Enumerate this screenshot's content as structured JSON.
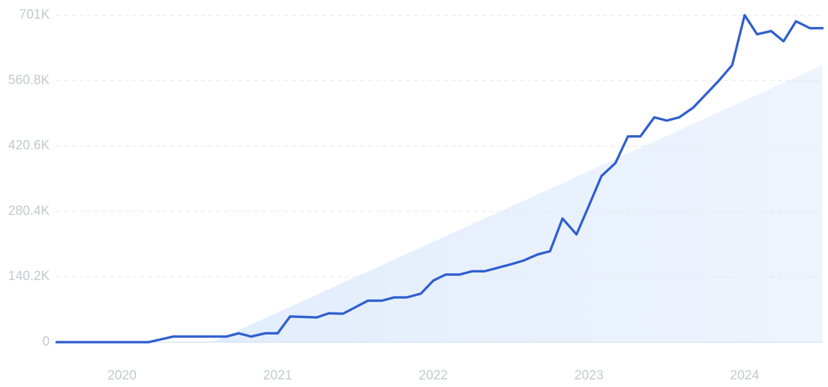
{
  "chart_data": {
    "type": "line",
    "x": [
      2019.58,
      2019.67,
      2019.75,
      2019.83,
      2019.92,
      2020,
      2020.08,
      2020.17,
      2020.25,
      2020.33,
      2020.42,
      2020.5,
      2020.58,
      2020.67,
      2020.75,
      2020.83,
      2020.92,
      2021,
      2021.08,
      2021.17,
      2021.25,
      2021.33,
      2021.42,
      2021.5,
      2021.58,
      2021.67,
      2021.75,
      2021.83,
      2021.92,
      2022,
      2022.08,
      2022.17,
      2022.25,
      2022.33,
      2022.42,
      2022.5,
      2022.58,
      2022.67,
      2022.75,
      2022.83,
      2022.92,
      2023,
      2023.08,
      2023.17,
      2023.25,
      2023.33,
      2023.42,
      2023.5,
      2023.58,
      2023.67,
      2023.75,
      2023.83,
      2023.92,
      2024,
      2024.08,
      2024.17,
      2024.25,
      2024.33,
      2024.42,
      2024.5
    ],
    "series": [
      {
        "color": "#2f5fd0",
        "values": [
          0,
          0,
          0,
          0,
          0,
          0,
          0,
          0,
          6000,
          12000,
          12000,
          12000,
          12000,
          12000,
          19000,
          12000,
          19000,
          19000,
          55000,
          54000,
          53000,
          62000,
          61000,
          75000,
          89000,
          89000,
          96000,
          96000,
          104000,
          132000,
          145000,
          145000,
          152000,
          152000,
          160000,
          167000,
          175000,
          188000,
          195000,
          265000,
          231000,
          293000,
          356000,
          384000,
          441000,
          441000,
          482000,
          475000,
          482000,
          503000,
          531000,
          559000,
          594000,
          701000,
          660000,
          667000,
          645000,
          688000,
          673000,
          673000
        ]
      }
    ],
    "trend": {
      "color": "#dce9fb",
      "x": [
        2020.58,
        2024.5
      ],
      "values": [
        0,
        594000
      ]
    },
    "xlim": [
      2019.58,
      2024.5
    ],
    "xticks": [
      2020,
      2021,
      2022,
      2023,
      2024
    ],
    "ylim": [
      0,
      701000
    ],
    "yticks": [
      0,
      {
        "value": 140200,
        "label": "140.2K"
      },
      {
        "value": 280400,
        "label": "280.4K"
      },
      {
        "value": 420600,
        "label": "420.6K"
      },
      {
        "value": 560800,
        "label": "560.8K"
      },
      {
        "value": 701000,
        "label": "701K"
      }
    ],
    "grid": true
  }
}
